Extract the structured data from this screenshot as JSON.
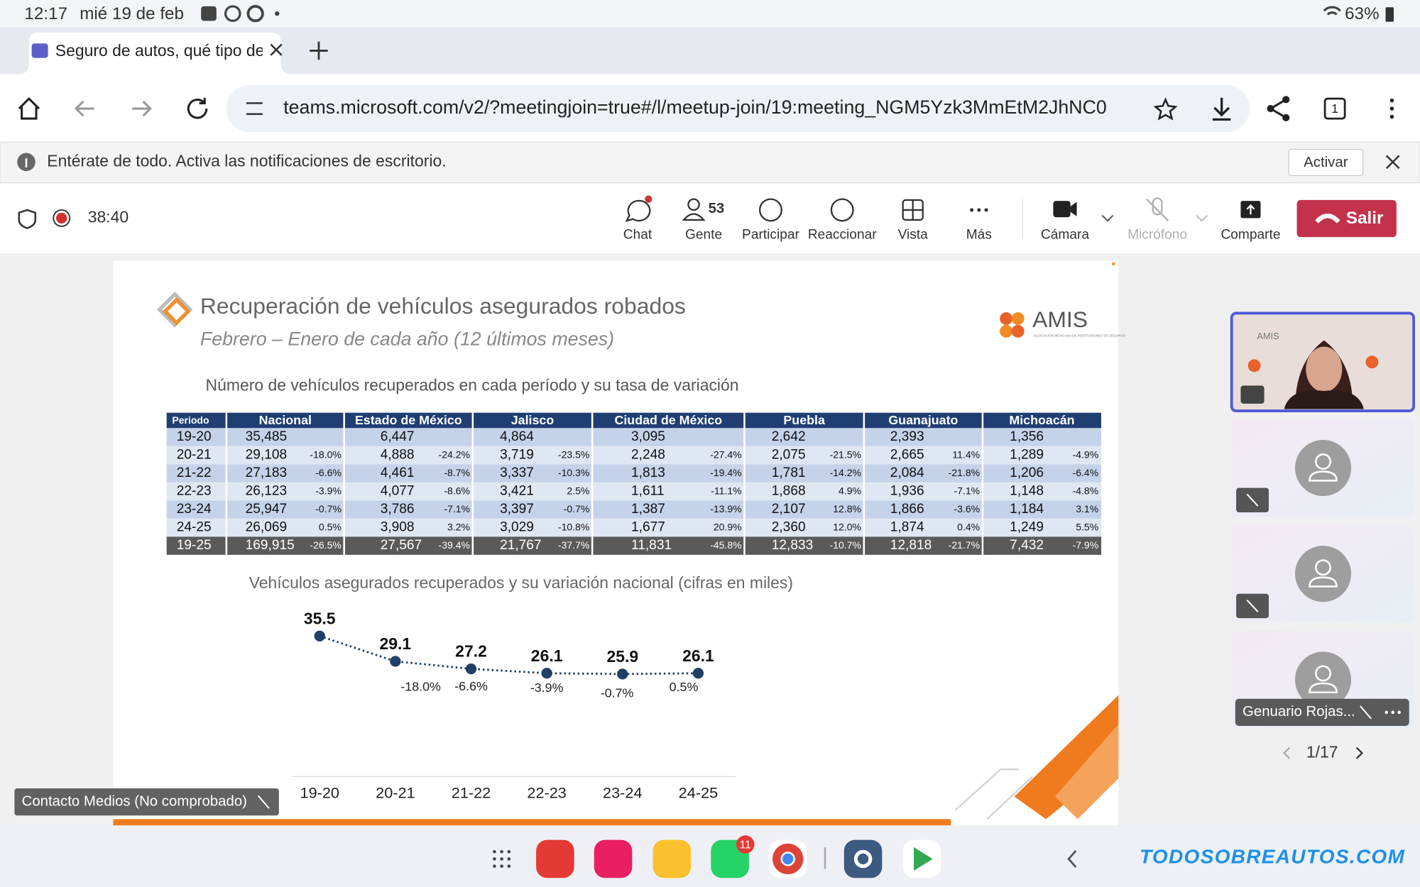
{
  "status_bar": {
    "time": "12:17",
    "date": "mié 19 de feb",
    "battery": "63%"
  },
  "browser": {
    "tab_title": "Seguro de autos, qué tipo de",
    "url": "teams.microsoft.com/v2/?meetingjoin=true#/l/meetup-join/19:meeting_NGM5Yzk3MmEtM2JhNC0",
    "tab_count": "1",
    "notification": "Entérate de todo. Activa las notificaciones de escritorio.",
    "notification_button": "Activar"
  },
  "meeting": {
    "timer": "38:40",
    "people_count": "53",
    "toolbar": [
      "Chat",
      "Gente",
      "Participar",
      "Reaccionar",
      "Vista",
      "Más",
      "Cámara",
      "Micrófono",
      "Comparte"
    ],
    "leave": "Salir"
  },
  "slide": {
    "title": "Recuperación de vehículos asegurados robados",
    "subtitle": "Febrero – Enero de cada año (12 últimos meses)",
    "logo": "AMIS",
    "logo_subtitle": "ASOCIACIÓN MEXICANA DE INSTITUCIONES DE SEGUROS",
    "table_caption": "Número de vehículos recuperados en cada período y su tasa de variación",
    "table": {
      "headers": [
        "Periodo",
        "Nacional",
        "Estado de México",
        "Jalisco",
        "Ciudad de México",
        "Puebla",
        "Guanajuato",
        "Michoacán"
      ],
      "rows": [
        [
          "19-20",
          "35,485",
          null,
          "6,447",
          null,
          "4,864",
          null,
          "3,095",
          null,
          "2,642",
          null,
          "2,393",
          null,
          "1,356",
          null
        ],
        [
          "20-21",
          "29,108",
          "-18.0%",
          "4,888",
          "-24.2%",
          "3,719",
          "-23.5%",
          "2,248",
          "-27.4%",
          "2,075",
          "-21.5%",
          "2,665",
          "11.4%",
          "1,289",
          "-4.9%"
        ],
        [
          "21-22",
          "27,183",
          "-6.6%",
          "4,461",
          "-8.7%",
          "3,337",
          "-10.3%",
          "1,813",
          "-19.4%",
          "1,781",
          "-14.2%",
          "2,084",
          "-21.8%",
          "1,206",
          "-6.4%"
        ],
        [
          "22-23",
          "26,123",
          "-3.9%",
          "4,077",
          "-8.6%",
          "3,421",
          "2.5%",
          "1,611",
          "-11.1%",
          "1,868",
          "4.9%",
          "1,936",
          "-7.1%",
          "1,148",
          "-4.8%"
        ],
        [
          "23-24",
          "25,947",
          "-0.7%",
          "3,786",
          "-7.1%",
          "3,397",
          "-0.7%",
          "1,387",
          "-13.9%",
          "2,107",
          "12.8%",
          "1,866",
          "-3.6%",
          "1,184",
          "3.1%"
        ],
        [
          "24-25",
          "26,069",
          "0.5%",
          "3,908",
          "3.2%",
          "3,029",
          "-10.8%",
          "1,677",
          "20.9%",
          "2,360",
          "12.0%",
          "1,874",
          "0.4%",
          "1,249",
          "5.5%"
        ],
        [
          "19-25",
          "169,915",
          "-26.5%",
          "27,567",
          "-39.4%",
          "21,767",
          "-37.7%",
          "11,831",
          "-45.8%",
          "12,833",
          "-10.7%",
          "12,818",
          "-21.7%",
          "7,432",
          "-7.9%"
        ]
      ]
    },
    "chart": {
      "type": "line",
      "title": "Vehículos asegurados recuperados y su variación nacional (cifras en miles)",
      "categories": [
        "19-20",
        "20-21",
        "21-22",
        "22-23",
        "23-24",
        "24-25"
      ],
      "values": [
        35.5,
        29.1,
        27.2,
        26.1,
        25.9,
        26.1
      ],
      "variation_labels": [
        null,
        "-18.0%",
        "-6.6%",
        "-3.9%",
        "-0.7%",
        "0.5%"
      ],
      "color": "#1f3f66"
    }
  },
  "participants": {
    "video_watermark": "AMIS",
    "name": "Genuario Rojas...",
    "page": "1/17"
  },
  "overlay_name": "Contacto Medios (No comprobado)",
  "dock_badge": "11",
  "watermark": "TODOSOBREAUTOS.COM"
}
